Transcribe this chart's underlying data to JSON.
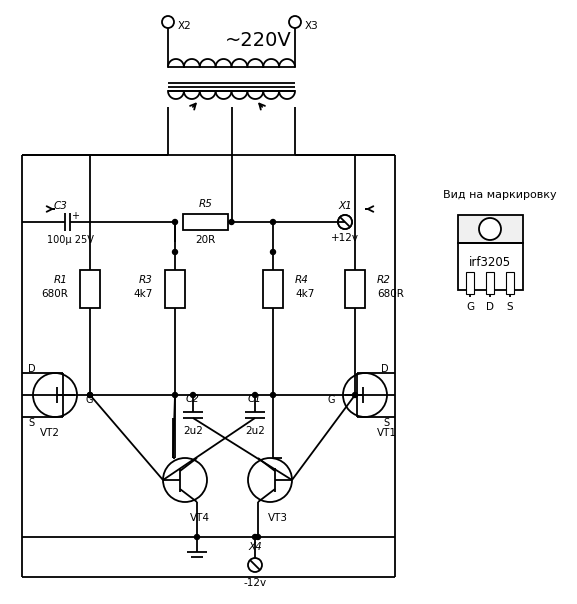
{
  "bg_color": "#ffffff",
  "line_color": "#000000",
  "figsize": [
    5.77,
    6.04
  ],
  "dpi": 100,
  "transformer_label": "~220V",
  "c3_label1": "C3",
  "c3_label2": "100μ 25V",
  "r5_label1": "R5",
  "r5_label2": "20R",
  "x1_label1": "X1",
  "x1_label2": "+12v",
  "x2_label": "X2",
  "x3_label": "X3",
  "x4_label1": "X4",
  "x4_label2": "-12v",
  "r1_label1": "R1",
  "r1_label2": "680R",
  "r2_label1": "R2",
  "r2_label2": "680R",
  "r3_label1": "R3",
  "r3_label2": "4k7",
  "r4_label1": "R4",
  "r4_label2": "4k7",
  "c2_label1": "C2",
  "c2_label2": "2u2",
  "c1_label1": "C1",
  "c1_label2": "2u2",
  "vt1_label": "VT1",
  "vt2_label": "VT2",
  "vt3_label": "VT3",
  "vt4_label": "VT4",
  "irf_label": "irf3205",
  "gds_label": "G D S",
  "vid_label": "Вид на маркировку",
  "d_label": "D",
  "s_label": "S",
  "g_label": "G"
}
